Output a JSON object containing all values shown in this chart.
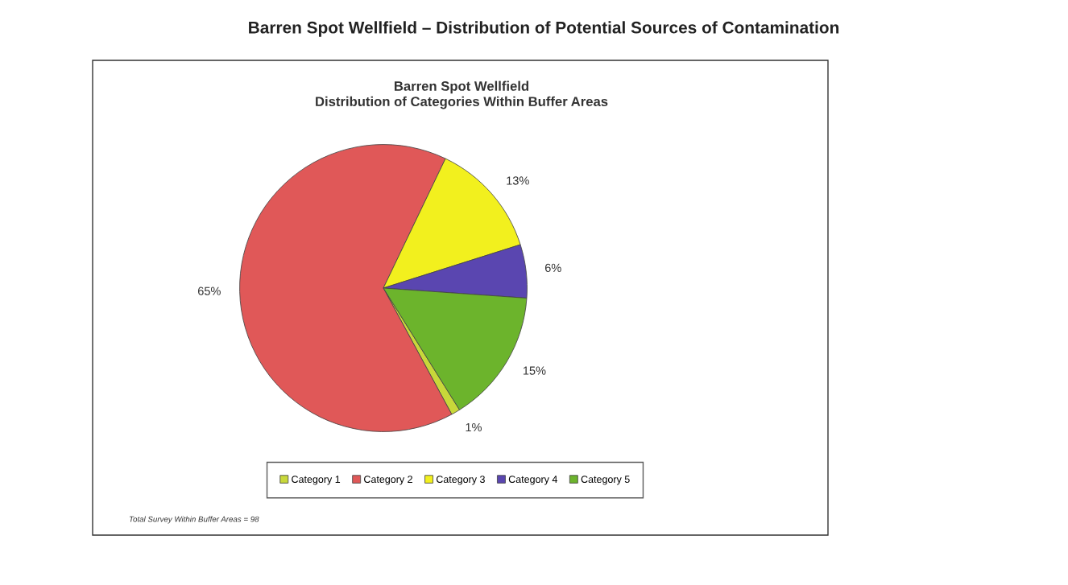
{
  "chart_data": {
    "type": "pie",
    "title": "Barren Spot Wellfield – Distribution of Potential Sources of Contamination",
    "subtitle": "Barren Spot Wellfield\nDistribution of Categories Within Buffer Areas",
    "categories": [
      "Category 1",
      "Category 2",
      "Category 3",
      "Category 4",
      "Category 5"
    ],
    "values": [
      1,
      65,
      13,
      6,
      15
    ],
    "value_labels": [
      "1%",
      "65%",
      "13%",
      "6%",
      "15%"
    ],
    "colors": [
      "#c8d83a",
      "#e05858",
      "#f2f01e",
      "#5a46b0",
      "#6cb42c"
    ],
    "legend": "bottom",
    "annotations": [
      "Total Survey Within Buffer Areas = 98"
    ]
  }
}
